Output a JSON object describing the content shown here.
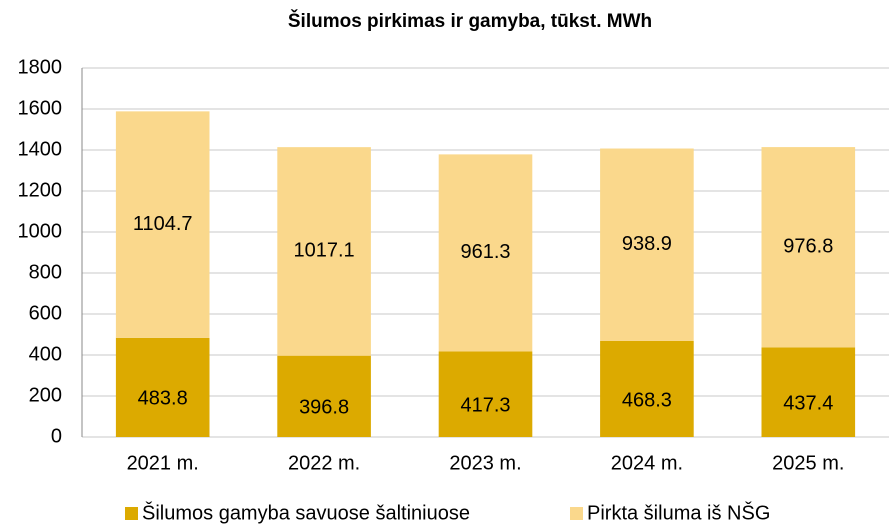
{
  "chart_data": {
    "type": "stacked_bar",
    "title": "Šilumos pirkimas ir gamyba, tūkst. MWh",
    "categories": [
      "2021 m.",
      "2022 m.",
      "2023 m.",
      "2024 m.",
      "2025 m."
    ],
    "series": [
      {
        "name": "Šilumos gamyba savuose šaltiniuose",
        "color": "#dcaa00",
        "values": [
          483.8,
          396.8,
          417.3,
          468.3,
          437.4
        ]
      },
      {
        "name": "Pirkta šiluma iš NŠG",
        "color": "#fad88c",
        "values": [
          1104.7,
          1017.1,
          961.3,
          938.9,
          976.8
        ]
      }
    ],
    "ylim": [
      0,
      1800
    ],
    "yticks": [
      0,
      200,
      400,
      600,
      800,
      1000,
      1200,
      1400,
      1600,
      1800
    ],
    "grid": true,
    "legend": "bottom"
  }
}
